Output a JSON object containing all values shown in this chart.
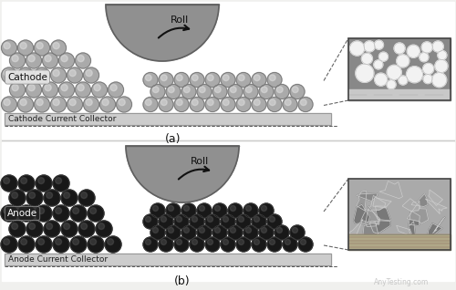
{
  "bg_color": "#f0f0ee",
  "panel_bg": "#ffffff",
  "panel_a": {
    "label": "(a)",
    "cathode_label": "Cathode",
    "collector_label": "Cathode Current Collector",
    "ball_color": "#aaaaaa",
    "ball_highlight": "#dddddd",
    "ball_edge": "#777777",
    "roll_color": "#909090",
    "roll_edge": "#606060",
    "roll_label": "Roll",
    "collector_color": "#cccccc",
    "collector_border": "#999999"
  },
  "panel_b": {
    "label": "(b)",
    "anode_label": "Anode",
    "collector_label": "Anode Current Collector",
    "ball_color": "#181818",
    "ball_highlight": "#555555",
    "ball_edge": "#404040",
    "roll_color": "#909090",
    "roll_edge": "#606060",
    "roll_label": "Roll",
    "collector_color": "#cccccc",
    "collector_border": "#999999"
  },
  "watermark": "AnyTesting.com",
  "dash_color": "#666666"
}
